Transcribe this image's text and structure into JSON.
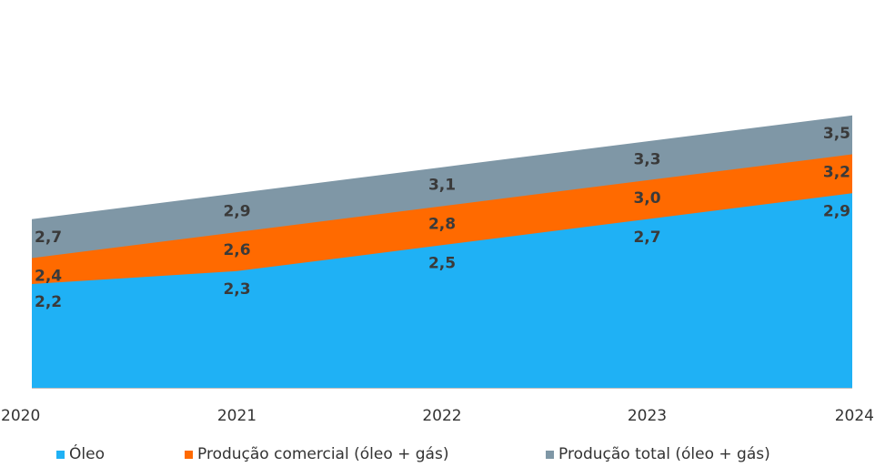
{
  "chart_data": {
    "type": "area",
    "stacked": false,
    "x": [
      "2020",
      "2021",
      "2022",
      "2023",
      "2024"
    ],
    "series": [
      {
        "name": "Produção total (óleo + gás)",
        "values": [
          2.7,
          2.9,
          3.1,
          3.3,
          3.5
        ],
        "color": "#7f97a6",
        "labels": [
          "2,7",
          "2,9",
          "3,1",
          "3,3",
          "3,5"
        ]
      },
      {
        "name": "Produção comercial (óleo + gás)",
        "values": [
          2.4,
          2.6,
          2.8,
          3.0,
          3.2
        ],
        "color": "#ff6a00",
        "labels": [
          "2,4",
          "2,6",
          "2,8",
          "3,0",
          "3,2"
        ]
      },
      {
        "name": "Óleo",
        "values": [
          2.2,
          2.3,
          2.5,
          2.7,
          2.9
        ],
        "color": "#1fb1f5",
        "labels": [
          "2,2",
          "2,3",
          "2,5",
          "2,7",
          "2,9"
        ]
      }
    ],
    "legend": {
      "position": "bottom",
      "items": [
        {
          "label": "Óleo",
          "color": "#1fb1f5"
        },
        {
          "label": "Produção comercial (óleo + gás)",
          "color": "#ff6a00"
        },
        {
          "label": "Produção total (óleo + gás)",
          "color": "#7f97a6"
        }
      ]
    },
    "grid": false,
    "title": "",
    "xlabel": "",
    "ylabel": ""
  }
}
